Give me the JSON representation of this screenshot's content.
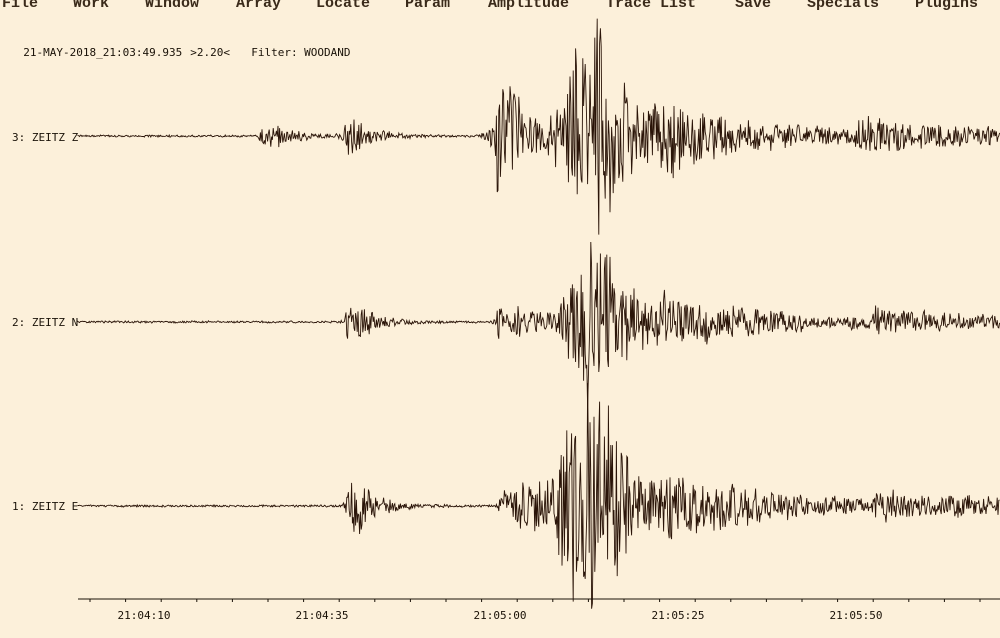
{
  "menu": [
    "File",
    "Work",
    "Window",
    "Array",
    "Locate",
    "Param",
    "Amplitude",
    "Trace List",
    "Save",
    "Specials",
    "Plugins"
  ],
  "header": {
    "start_time": "21-MAY-2018_21:03:49.935",
    "scale": ">2.20<",
    "filter": "Filter: WOODAND"
  },
  "traces": [
    {
      "label": "3: ZEITZ Z",
      "component": "Z"
    },
    {
      "label": "2: ZEITZ N",
      "component": "N"
    },
    {
      "label": "1: ZEITZ E",
      "component": "E"
    }
  ],
  "time_axis": {
    "ticks": [
      "21:04:10",
      "21:04:35",
      "21:05:00",
      "21:05:25",
      "21:05:50"
    ]
  },
  "colors": {
    "background": "#fcf0da",
    "trace": "#2a1408",
    "text": "#1a1208"
  }
}
